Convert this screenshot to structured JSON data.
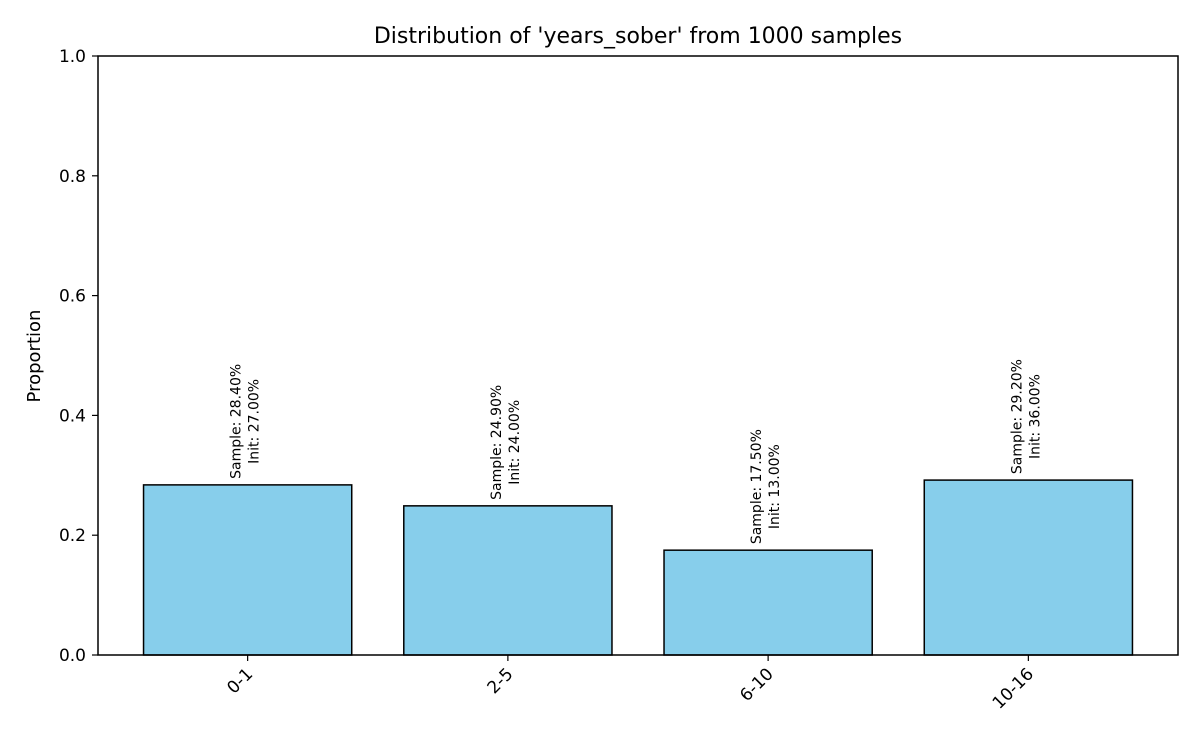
{
  "chart_data": {
    "type": "bar",
    "title": "Distribution of 'years_sober' from 1000 samples",
    "xlabel": "",
    "ylabel": "Proportion",
    "ylim": [
      0,
      1
    ],
    "yticks": [
      "0.0",
      "0.2",
      "0.4",
      "0.6",
      "0.8",
      "1.0"
    ],
    "categories": [
      "0-1",
      "2-5",
      "6-10",
      "10-16"
    ],
    "values": [
      0.284,
      0.249,
      0.175,
      0.292
    ],
    "sample_labels": [
      "Sample: 28.40%",
      "Sample: 24.90%",
      "Sample: 17.50%",
      "Sample: 29.20%"
    ],
    "init_labels": [
      "Init: 27.00%",
      "Init: 24.00%",
      "Init: 13.00%",
      "Init: 36.00%"
    ],
    "bar_color": "#87ceeb",
    "edge_color": "#000000",
    "grid": false
  }
}
